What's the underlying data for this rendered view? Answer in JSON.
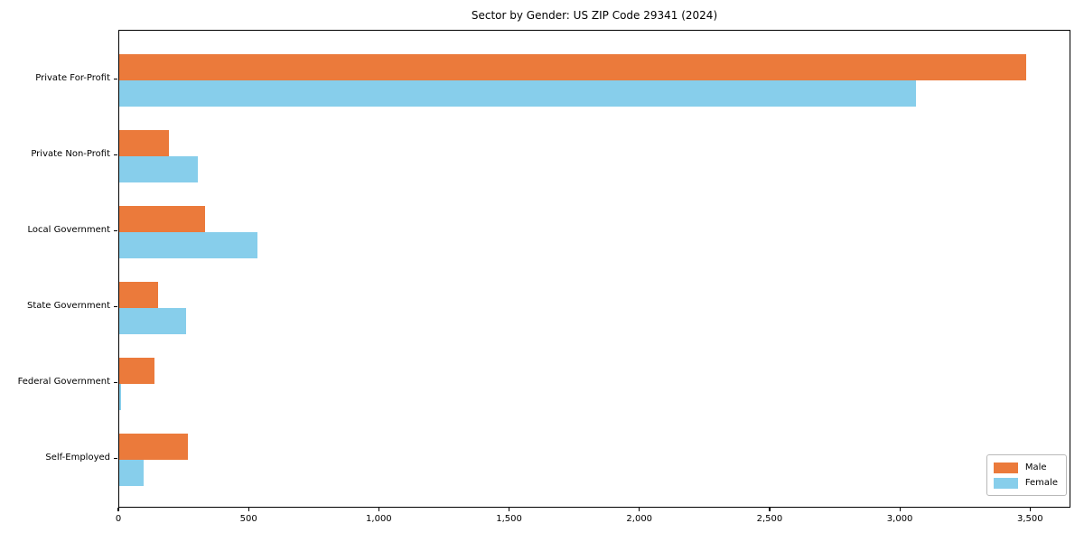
{
  "chart_data": {
    "type": "bar",
    "orientation": "horizontal",
    "title": "Sector by Gender: US ZIP Code 29341 (2024)",
    "categories": [
      "Private For-Profit",
      "Private Non-Profit",
      "Local Government",
      "State Government",
      "Federal Government",
      "Self-Employed"
    ],
    "series": [
      {
        "name": "Male",
        "color": "#EB7A3B",
        "values": [
          3480,
          190,
          330,
          150,
          135,
          265
        ]
      },
      {
        "name": "Female",
        "color": "#87CEEB",
        "values": [
          3060,
          300,
          530,
          255,
          8,
          95
        ]
      }
    ],
    "xlabel": "",
    "ylabel": "",
    "xlim": [
      0,
      3655
    ],
    "xticks": [
      0,
      500,
      1000,
      1500,
      2000,
      2500,
      3000,
      3500
    ],
    "xtick_labels": [
      "0",
      "500",
      "1,000",
      "1,500",
      "2,000",
      "2,500",
      "3,000",
      "3,500"
    ],
    "legend_position": "lower right",
    "grid": false,
    "plot_border_color": "#000000",
    "background_color": "#ffffff"
  }
}
